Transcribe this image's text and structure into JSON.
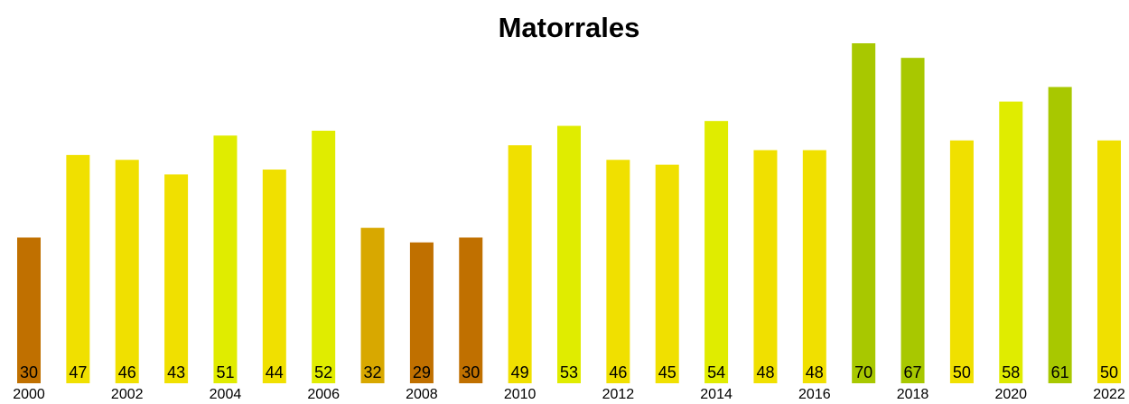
{
  "chart_data": {
    "type": "bar",
    "title": "Matorrales",
    "categories": [
      "2000",
      null,
      "2002",
      null,
      "2004",
      null,
      "2006",
      null,
      "2008",
      null,
      "2010",
      null,
      "2012",
      null,
      "2014",
      null,
      "2016",
      null,
      "2018",
      null,
      "2020",
      null,
      "2022"
    ],
    "values": [
      30,
      47,
      46,
      43,
      51,
      44,
      52,
      32,
      29,
      30,
      49,
      53,
      46,
      45,
      54,
      48,
      48,
      70,
      67,
      50,
      58,
      61,
      50
    ],
    "colors": [
      "#c07000",
      "#f0e000",
      "#f0e000",
      "#f0e000",
      "#e0ec00",
      "#f0e000",
      "#e0ec00",
      "#d8a800",
      "#c07000",
      "#c07000",
      "#f0e000",
      "#e0ec00",
      "#f0e000",
      "#f0e000",
      "#e0ec00",
      "#f0e000",
      "#f0e000",
      "#a8c800",
      "#a8c800",
      "#f0e000",
      "#e0ec00",
      "#a8c800",
      "#f0e000"
    ]
  }
}
